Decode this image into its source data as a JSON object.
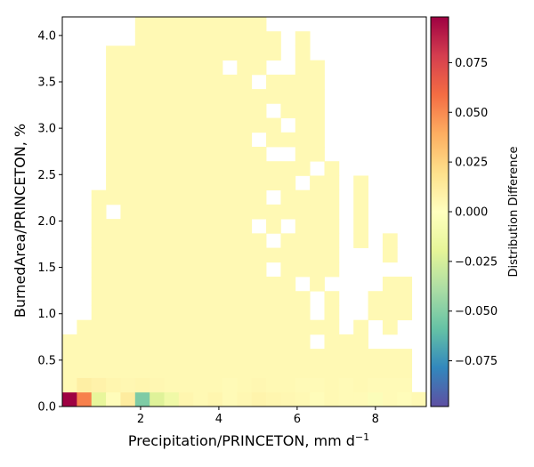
{
  "chart_data": {
    "type": "heatmap",
    "title": "",
    "xlabel": "Precipitation/PRINCETON,  mm d",
    "xlabel_superscript": "−1",
    "ylabel": "BurnedArea/PRINCETON,  %",
    "x_range": [
      0.0,
      9.3
    ],
    "y_range": [
      0.0,
      4.2
    ],
    "x_ticks": [
      2,
      4,
      6,
      8
    ],
    "x_tick_labels": [
      "2",
      "4",
      "6",
      "8"
    ],
    "y_ticks": [
      0.0,
      0.5,
      1.0,
      1.5,
      2.0,
      2.5,
      3.0,
      3.5,
      4.0
    ],
    "y_tick_labels": [
      "0.0",
      "0.5",
      "1.0",
      "1.5",
      "2.0",
      "2.5",
      "3.0",
      "3.5",
      "4.0"
    ],
    "grid": false,
    "n_x_bins": 25,
    "n_y_bins": 27,
    "colormap": "Spectral_r",
    "colorbar": {
      "label": "Distribution Difference",
      "range": [
        -0.098,
        0.098
      ],
      "ticks": [
        -0.075,
        -0.05,
        -0.025,
        0.0,
        0.025,
        0.05,
        0.075
      ],
      "tick_labels": [
        "−0.075",
        "−0.050",
        "−0.025",
        "0.000",
        "0.025",
        "0.050",
        "0.075"
      ]
    },
    "background_value": 0.004,
    "bottom_row_values": [
      0.098,
      0.053,
      -0.018,
      0.002,
      0.012,
      -0.052,
      -0.022,
      -0.012,
      0.006,
      0.004,
      0.006,
      0.003,
      0.005,
      0.007,
      0.006,
      0.005,
      0.004,
      0.002,
      0.004,
      0.003,
      0.003,
      -0.003,
      0.003,
      0.002,
      0.004
    ],
    "second_row_values": [
      0.004,
      0.01,
      0.008,
      0.006,
      0.005,
      0.006,
      0.005,
      0.004,
      0.004,
      0.004,
      0.004,
      0.003,
      0.004,
      0.005,
      0.004,
      0.004,
      0.003,
      0.003,
      0.004,
      0.003,
      0.004,
      0.003,
      0.003,
      0.003,
      null
    ],
    "column_top_rows": [
      4,
      5,
      14,
      24,
      24,
      26,
      26,
      26,
      26,
      26,
      26,
      26,
      26,
      26,
      25,
      22,
      25,
      23,
      16,
      8,
      15,
      10,
      11,
      8,
      0
    ],
    "empty_cells": [
      [
        3,
        13
      ],
      [
        11,
        23
      ],
      [
        13,
        22
      ],
      [
        14,
        23
      ],
      [
        14,
        20
      ],
      [
        13,
        18
      ],
      [
        14,
        17
      ],
      [
        14,
        14
      ],
      [
        13,
        12
      ],
      [
        14,
        11
      ],
      [
        14,
        9
      ],
      [
        15,
        17
      ],
      [
        15,
        19
      ],
      [
        15,
        12
      ],
      [
        16,
        15
      ],
      [
        16,
        8
      ],
      [
        17,
        7
      ],
      [
        17,
        6
      ],
      [
        19,
        7
      ],
      [
        19,
        5
      ],
      [
        20,
        6
      ],
      [
        20,
        7
      ],
      [
        21,
        5
      ],
      [
        21,
        4
      ],
      [
        22,
        4
      ],
      [
        23,
        4
      ],
      [
        23,
        5
      ],
      [
        20,
        8
      ],
      [
        20,
        9
      ],
      [
        20,
        10
      ],
      [
        21,
        10
      ],
      [
        21,
        11
      ],
      [
        21,
        12
      ],
      [
        22,
        9
      ],
      [
        23,
        9
      ],
      [
        24,
        9
      ],
      [
        22,
        12
      ],
      [
        22,
        13
      ],
      [
        23,
        12
      ],
      [
        23,
        13
      ],
      [
        24,
        13
      ],
      [
        17,
        4
      ],
      [
        18,
        8
      ],
      [
        19,
        6
      ],
      [
        19,
        8
      ],
      [
        21,
        9
      ],
      [
        21,
        8
      ],
      [
        19,
        11
      ],
      [
        17,
        16
      ],
      [
        18,
        17
      ],
      [
        18,
        18
      ],
      [
        19,
        19
      ],
      [
        19,
        20
      ]
    ],
    "highlight_cells": [
      [
        20,
        21
      ]
    ]
  }
}
